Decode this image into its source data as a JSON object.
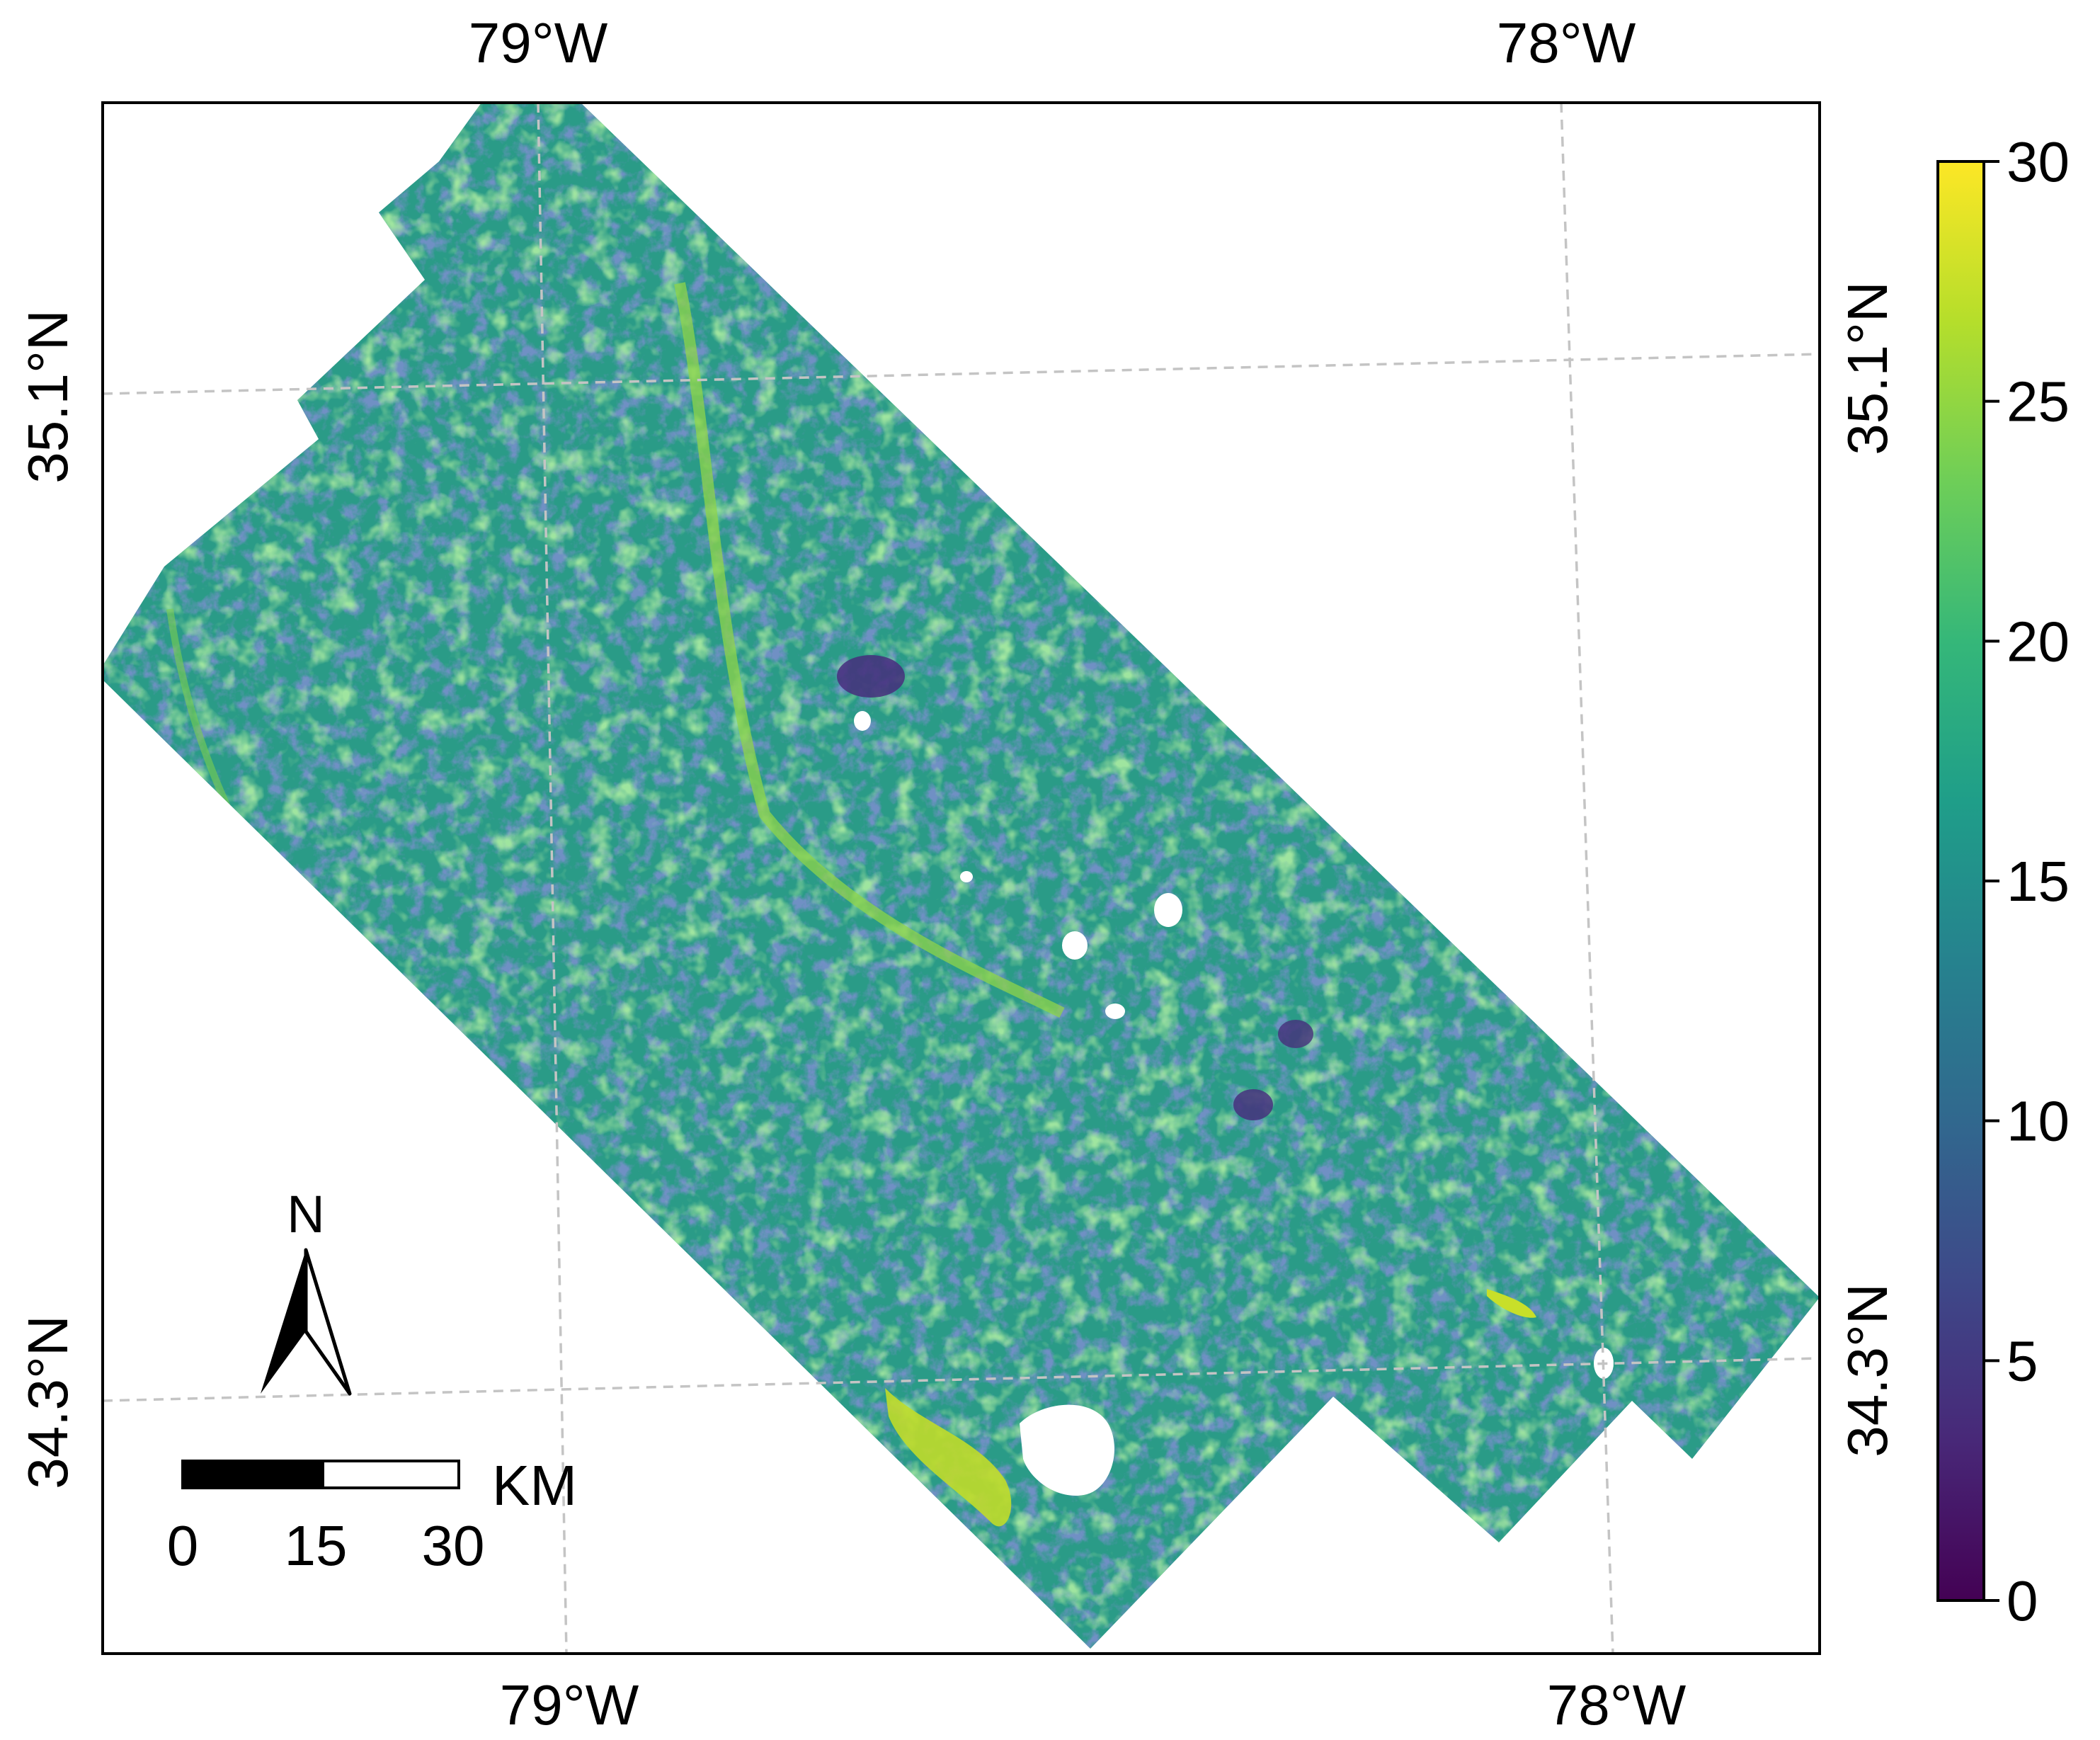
{
  "map": {
    "graticule": {
      "top_lon_labels": [
        "79°W",
        "78°W"
      ],
      "bottom_lon_labels": [
        "79°W",
        "78°W"
      ],
      "left_lat_labels": [
        "35.1°N",
        "34.3°N"
      ],
      "right_lat_labels": [
        "35.1°N",
        "34.3°N"
      ],
      "line_style": "dashed",
      "line_color": "#c4c4c4"
    },
    "colorbar": {
      "colormap": "viridis",
      "min": 0,
      "max": 30,
      "tick_labels": [
        "0",
        "5",
        "10",
        "15",
        "20",
        "25",
        "30"
      ],
      "stops": [
        "#440154",
        "#482878",
        "#3e4989",
        "#31688e",
        "#26828e",
        "#1f9e89",
        "#35b779",
        "#6ece58",
        "#b5de2b",
        "#fde725"
      ]
    },
    "north_arrow": {
      "label": "N"
    },
    "scale_bar": {
      "tick_labels": [
        "0",
        "15",
        "30"
      ],
      "unit": "KM"
    },
    "raster": {
      "dominant_color": "#2a9b87",
      "nodata_color": "#ffffff"
    }
  }
}
